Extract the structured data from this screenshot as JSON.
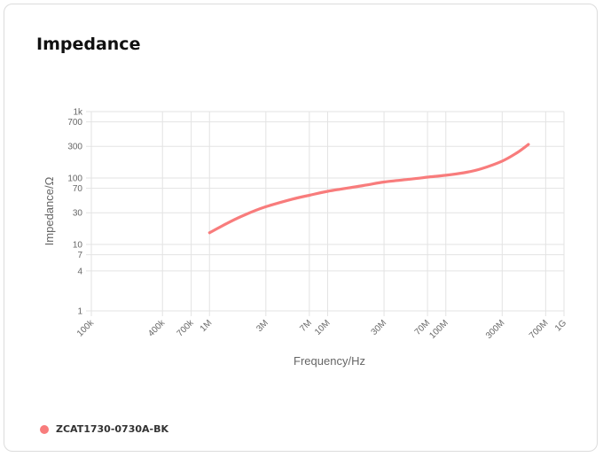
{
  "card": {
    "title": "Impedance"
  },
  "chart_data": {
    "type": "line",
    "title": "Impedance",
    "xlabel": "Frequency/Hz",
    "ylabel": "Impedance/Ω",
    "x_scale": "log",
    "y_scale": "log",
    "xlim": [
      100000,
      1000000000
    ],
    "ylim": [
      1,
      1000
    ],
    "grid": true,
    "legend_position": "bottom-left",
    "x_ticks": [
      {
        "value": 100000,
        "label": "100k"
      },
      {
        "value": 400000,
        "label": "400k"
      },
      {
        "value": 700000,
        "label": "700k"
      },
      {
        "value": 1000000,
        "label": "1M"
      },
      {
        "value": 3000000,
        "label": "3M"
      },
      {
        "value": 7000000,
        "label": "7M"
      },
      {
        "value": 10000000,
        "label": "10M"
      },
      {
        "value": 30000000,
        "label": "30M"
      },
      {
        "value": 70000000,
        "label": "70M"
      },
      {
        "value": 100000000,
        "label": "100M"
      },
      {
        "value": 300000000,
        "label": "300M"
      },
      {
        "value": 700000000,
        "label": "700M"
      },
      {
        "value": 1000000000,
        "label": "1G"
      }
    ],
    "y_ticks": [
      {
        "value": 1,
        "label": "1"
      },
      {
        "value": 4,
        "label": "4"
      },
      {
        "value": 7,
        "label": "7"
      },
      {
        "value": 10,
        "label": "10"
      },
      {
        "value": 30,
        "label": "30"
      },
      {
        "value": 70,
        "label": "70"
      },
      {
        "value": 100,
        "label": "100"
      },
      {
        "value": 300,
        "label": "300"
      },
      {
        "value": 700,
        "label": "700"
      },
      {
        "value": 1000,
        "label": "1k"
      }
    ],
    "series": [
      {
        "name": "ZCAT1730-0730A-BK",
        "color": "#f87c7c",
        "x": [
          1000000,
          1500000,
          2000000,
          3000000,
          5000000,
          7000000,
          10000000,
          20000000,
          30000000,
          50000000,
          70000000,
          100000000,
          150000000,
          200000000,
          300000000,
          400000000,
          500000000
        ],
        "y": [
          15,
          22,
          28,
          37,
          48,
          55,
          63,
          77,
          87,
          96,
          103,
          110,
          122,
          138,
          180,
          240,
          320
        ]
      }
    ]
  }
}
